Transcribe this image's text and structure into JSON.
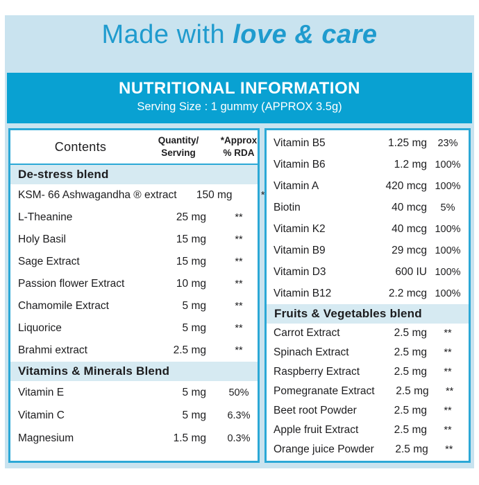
{
  "header": {
    "title_regular": "Made with",
    "title_emphasis": "love & care"
  },
  "banner": {
    "title": "NUTRITIONAL INFORMATION",
    "serving_size": "Serving Size : 1 gummy (APPROX 3.5g)"
  },
  "columns": {
    "contents": "Contents",
    "quantity_line1": "Quantity/",
    "quantity_line2": "Serving",
    "rda_line1": "*Approx",
    "rda_line2": "% RDA"
  },
  "left_table": {
    "sections": [
      {
        "title": "De-stress blend",
        "rows": [
          {
            "name": "KSM- 66 Ashwagandha ® extract",
            "qty": "150 mg",
            "rda": "**"
          },
          {
            "name": "L-Theanine",
            "qty": "25 mg",
            "rda": "**"
          },
          {
            "name": "Holy Basil",
            "qty": "15 mg",
            "rda": "**"
          },
          {
            "name": "Sage Extract",
            "qty": "15 mg",
            "rda": "**"
          },
          {
            "name": "Passion flower Extract",
            "qty": "10 mg",
            "rda": "**"
          },
          {
            "name": "Chamomile Extract",
            "qty": "5 mg",
            "rda": "**"
          },
          {
            "name": "Liquorice",
            "qty": "5 mg",
            "rda": "**"
          },
          {
            "name": "Brahmi extract",
            "qty": "2.5 mg",
            "rda": "**"
          }
        ]
      },
      {
        "title": "Vitamins & Minerals Blend",
        "rows": [
          {
            "name": "Vitamin E",
            "qty": "5 mg",
            "rda": "50%"
          },
          {
            "name": "Vitamin C",
            "qty": "5 mg",
            "rda": "6.3%"
          },
          {
            "name": "Magnesium",
            "qty": "1.5 mg",
            "rda": "0.3%"
          }
        ]
      }
    ]
  },
  "right_table": {
    "rows": [
      {
        "name": "Vitamin B5",
        "qty": "1.25 mg",
        "rda": "23%"
      },
      {
        "name": "Vitamin B6",
        "qty": "1.2 mg",
        "rda": "100%"
      },
      {
        "name": "Vitamin A",
        "qty": "420 mcg",
        "rda": "100%"
      },
      {
        "name": "Biotin",
        "qty": "40 mcg",
        "rda": "5%"
      },
      {
        "name": "Vitamin K2",
        "qty": "40 mcg",
        "rda": "100%"
      },
      {
        "name": "Vitamin B9",
        "qty": "29 mcg",
        "rda": "100%"
      },
      {
        "name": "Vitamin D3",
        "qty": "600 IU",
        "rda": "100%"
      },
      {
        "name": "Vitamin B12",
        "qty": "2.2 mcg",
        "rda": "100%"
      }
    ],
    "sections": [
      {
        "title": "Fruits & Vegetables blend",
        "rows": [
          {
            "name": "Carrot Extract",
            "qty": "2.5 mg",
            "rda": "**"
          },
          {
            "name": "Spinach Extract",
            "qty": "2.5 mg",
            "rda": "**"
          },
          {
            "name": "Raspberry Extract",
            "qty": "2.5 mg",
            "rda": "**"
          },
          {
            "name": "Pomegranate Extract",
            "qty": "2.5 mg",
            "rda": "**"
          },
          {
            "name": "Beet root Powder",
            "qty": "2.5 mg",
            "rda": "**"
          },
          {
            "name": "Apple fruit Extract",
            "qty": "2.5 mg",
            "rda": "**"
          },
          {
            "name": "Orange juice Powder",
            "qty": "2.5 mg",
            "rda": "**"
          }
        ]
      }
    ]
  },
  "colors": {
    "accent_cyan": "#09a1d2",
    "border_cyan": "#2ba8d6",
    "panel_blue": "#c9e3ef",
    "section_blue": "#d6eaf2",
    "heading_blue": "#1f9bce",
    "text_dark": "#1c1c1e"
  }
}
